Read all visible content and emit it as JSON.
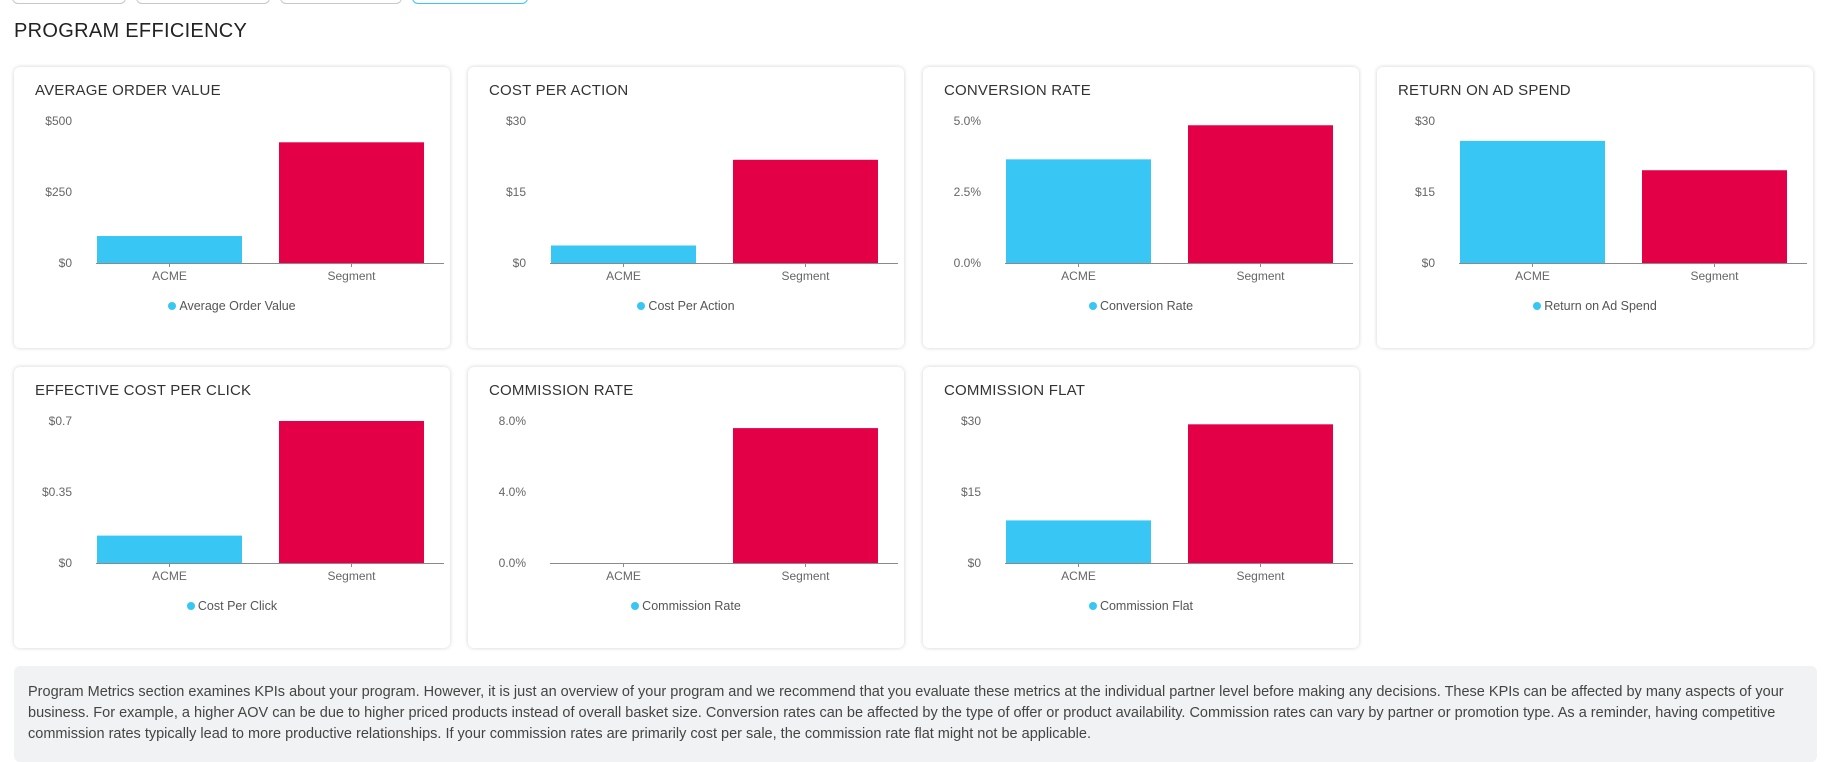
{
  "section": {
    "title": "PROGRAM EFFICIENCY"
  },
  "colors": {
    "acme": "#38c6f4",
    "segment": "#e40046"
  },
  "chart_data": [
    {
      "type": "bar",
      "title": "AVERAGE ORDER VALUE",
      "categories": [
        "ACME",
        "Segment"
      ],
      "values": [
        95,
        425
      ],
      "ylim": [
        0,
        500
      ],
      "yticks": [
        0,
        250,
        500
      ],
      "ytick_labels": [
        "$0",
        "$250",
        "$500"
      ],
      "legend": "Average Order Value",
      "legend_placement": "bottom",
      "grid": false
    },
    {
      "type": "bar",
      "title": "COST PER ACTION",
      "categories": [
        "ACME",
        "Segment"
      ],
      "values": [
        3.7,
        21.8
      ],
      "ylim": [
        0,
        30
      ],
      "yticks": [
        0,
        15,
        30
      ],
      "ytick_labels": [
        "$0",
        "$15",
        "$30"
      ],
      "legend": "Cost Per Action",
      "legend_placement": "bottom",
      "grid": false
    },
    {
      "type": "bar",
      "title": "CONVERSION RATE",
      "categories": [
        "ACME",
        "Segment"
      ],
      "values": [
        3.65,
        4.85
      ],
      "ylim": [
        0,
        5
      ],
      "yticks": [
        0,
        2.5,
        5
      ],
      "ytick_labels": [
        "0.0%",
        "2.5%",
        "5.0%"
      ],
      "legend": "Conversion Rate",
      "legend_placement": "bottom",
      "grid": false
    },
    {
      "type": "bar",
      "title": "RETURN ON AD SPEND",
      "categories": [
        "ACME",
        "Segment"
      ],
      "values": [
        25.8,
        19.6
      ],
      "ylim": [
        0,
        30
      ],
      "yticks": [
        0,
        15,
        30
      ],
      "ytick_labels": [
        "$0",
        "$15",
        "$30"
      ],
      "legend": "Return on Ad Spend",
      "legend_placement": "bottom",
      "grid": false
    },
    {
      "type": "bar",
      "title": "EFFECTIVE COST PER CLICK",
      "categories": [
        "ACME",
        "Segment"
      ],
      "values": [
        0.135,
        0.7
      ],
      "ylim": [
        0,
        0.7
      ],
      "yticks": [
        0,
        0.35,
        0.7
      ],
      "ytick_labels": [
        "$0",
        "$0.35",
        "$0.7"
      ],
      "legend": "Cost Per Click",
      "legend_placement": "bottom",
      "grid": false
    },
    {
      "type": "bar",
      "title": "COMMISSION RATE",
      "categories": [
        "ACME",
        "Segment"
      ],
      "values": [
        0,
        7.6
      ],
      "ylim": [
        0,
        8
      ],
      "yticks": [
        0,
        4,
        8
      ],
      "ytick_labels": [
        "0.0%",
        "4.0%",
        "8.0%"
      ],
      "legend": "Commission Rate",
      "legend_placement": "bottom",
      "grid": false
    },
    {
      "type": "bar",
      "title": "COMMISSION FLAT",
      "categories": [
        "ACME",
        "Segment"
      ],
      "values": [
        9,
        29.3
      ],
      "ylim": [
        0,
        30
      ],
      "yticks": [
        0,
        15,
        30
      ],
      "ytick_labels": [
        "$0",
        "$15",
        "$30"
      ],
      "legend": "Commission Flat",
      "legend_placement": "bottom",
      "grid": false
    }
  ],
  "note": {
    "text": "Program Metrics section examines KPIs about your program. However, it is just an overview of your program and we recommend that you evaluate these metrics at the individual partner level before making any decisions. These KPIs can be affected by many aspects of your business. For example, a higher AOV can be due to higher priced products instead of overall basket size. Conversion rates can be affected by the type of offer or product availability. Commission rates can vary by partner or promotion type. As a reminder, having competitive commission rates typically lead to more productive relationships. If your commission rates are primarily cost per sale, the commission rate flat might not be applicable."
  }
}
